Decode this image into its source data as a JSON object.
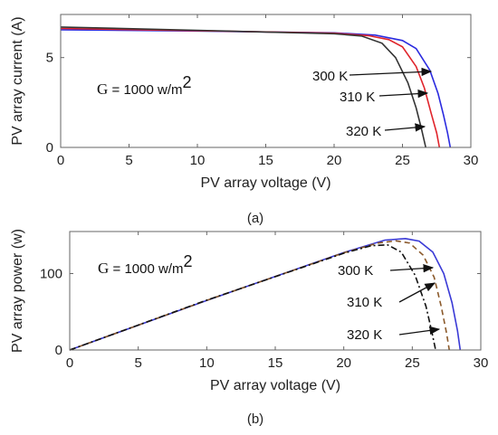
{
  "chart_data": [
    {
      "type": "line",
      "caption": "(a)",
      "xlabel": "PV array voltage (V)",
      "ylabel": "PV array current (A)",
      "xlim": [
        0,
        30
      ],
      "ylim": [
        0,
        7.4
      ],
      "xticks": [
        "0",
        "5",
        "10",
        "15",
        "20",
        "25",
        "30"
      ],
      "yticks": [
        {
          "value": 0,
          "label": "0"
        },
        {
          "value": 5,
          "label": "5"
        }
      ],
      "grid": false,
      "annotation": {
        "g_prefix": "G",
        "g_value": "= 1000 w/m",
        "g_exp": "2"
      },
      "arrow_labels": [
        "300 K",
        "310 K",
        "320 K"
      ],
      "series": [
        {
          "color": "#2b2bdf",
          "dash": "",
          "x": [
            0,
            10,
            20,
            23,
            25,
            26,
            27,
            27.6,
            28,
            28.3,
            28.5
          ],
          "y": [
            6.55,
            6.48,
            6.38,
            6.25,
            5.95,
            5.5,
            4.3,
            3.0,
            1.8,
            0.8,
            0
          ]
        },
        {
          "color": "#e0252c",
          "dash": "",
          "x": [
            0,
            10,
            20,
            22.5,
            24,
            25,
            26,
            26.6,
            27.1,
            27.5,
            27.7
          ],
          "y": [
            6.62,
            6.5,
            6.36,
            6.22,
            6.0,
            5.6,
            4.5,
            3.3,
            1.9,
            0.8,
            0
          ]
        },
        {
          "color": "#333333",
          "dash": "",
          "x": [
            0,
            10,
            20,
            22,
            23.5,
            24.5,
            25.4,
            26,
            26.4,
            26.7
          ],
          "y": [
            6.7,
            6.52,
            6.33,
            6.2,
            5.8,
            5.0,
            3.6,
            2.2,
            1.0,
            0
          ]
        }
      ]
    },
    {
      "type": "line",
      "caption": "(b)",
      "xlabel": "PV array voltage (V)",
      "ylabel": "PV array power (w)",
      "xlim": [
        0,
        30
      ],
      "ylim": [
        0,
        155
      ],
      "xticks": [
        "0",
        "5",
        "10",
        "15",
        "20",
        "25",
        "30"
      ],
      "yticks": [
        {
          "value": 0,
          "label": "0"
        },
        {
          "value": 100,
          "label": "100"
        }
      ],
      "grid": false,
      "annotation": {
        "g_prefix": "G",
        "g_value": "= 1000 w/m",
        "g_exp": "2"
      },
      "arrow_labels": [
        "300 K",
        "310 K",
        "320 K"
      ],
      "series": [
        {
          "color": "#3a3ad6",
          "dash": "",
          "x": [
            0,
            10,
            20,
            23,
            24.5,
            25.5,
            26.5,
            27.3,
            27.9,
            28.3,
            28.5
          ],
          "y": [
            0,
            64.8,
            127.6,
            143.8,
            145.8,
            142.5,
            128,
            100,
            62,
            25,
            0
          ]
        },
        {
          "color": "#8b5a2b",
          "dash": "6,4",
          "x": [
            0,
            10,
            20,
            22.5,
            23.8,
            24.8,
            25.8,
            26.6,
            27.1,
            27.5,
            27.7
          ],
          "y": [
            0,
            65,
            127.2,
            140,
            142.8,
            140,
            124,
            95,
            58,
            22,
            0
          ]
        },
        {
          "color": "#111111",
          "dash": "7,3,2,3",
          "x": [
            0,
            10,
            20,
            22,
            23.2,
            24.2,
            25.2,
            26,
            26.4,
            26.7
          ],
          "y": [
            0,
            65.2,
            126.6,
            136.4,
            137.5,
            128,
            98,
            57,
            26,
            0
          ]
        }
      ]
    }
  ]
}
